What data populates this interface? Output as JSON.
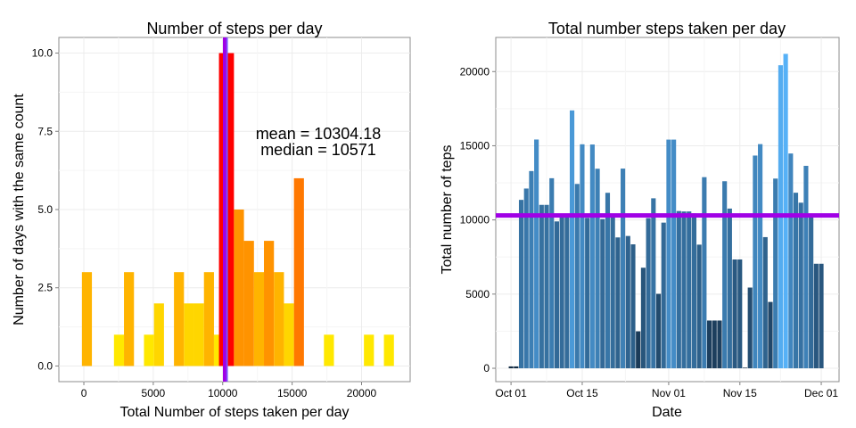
{
  "chart_data": [
    {
      "type": "bar",
      "title": "Number of steps per day",
      "xlabel": "Total Number of steps taken per day",
      "ylabel": "Number of days with the same count",
      "xlim": [
        -1800,
        23500
      ],
      "ylim": [
        -0.5,
        10.5
      ],
      "xticks": [
        0,
        5000,
        10000,
        15000,
        20000
      ],
      "xtick_labels": [
        "0",
        "5000",
        "10000",
        "15000",
        "20000"
      ],
      "yticks": [
        0,
        2.5,
        5,
        7.5,
        10
      ],
      "ytick_labels": [
        "0.0",
        "2.5",
        "5.0",
        "7.5",
        "10.0"
      ],
      "grid": true,
      "bin_width": 720,
      "bins": [
        {
          "x": 215,
          "count": 0
        },
        {
          "x": 220,
          "count": 3
        },
        {
          "x": 1650,
          "count": 0
        },
        {
          "x": 2530,
          "count": 1
        },
        {
          "x": 3250,
          "count": 3
        },
        {
          "x": 4690,
          "count": 1
        },
        {
          "x": 5410,
          "count": 2
        },
        {
          "x": 6850,
          "count": 3
        },
        {
          "x": 7570,
          "count": 2
        },
        {
          "x": 8290,
          "count": 2
        },
        {
          "x": 9010,
          "count": 3
        },
        {
          "x": 9730,
          "count": 1
        },
        {
          "x": 10090,
          "count": 10
        },
        {
          "x": 10450,
          "count": 10
        },
        {
          "x": 11170,
          "count": 5
        },
        {
          "x": 11890,
          "count": 4
        },
        {
          "x": 12610,
          "count": 3
        },
        {
          "x": 13330,
          "count": 4
        },
        {
          "x": 14050,
          "count": 3
        },
        {
          "x": 14770,
          "count": 2
        },
        {
          "x": 15490,
          "count": 6
        },
        {
          "x": 17650,
          "count": 1
        },
        {
          "x": 20530,
          "count": 1
        },
        {
          "x": 21970,
          "count": 1
        }
      ],
      "colors": {
        "low": "#ffe800",
        "mid": "#ffb400",
        "high": "#ff7800",
        "peak": "#ff0000",
        "mean_line": "#a000e6"
      },
      "mean_x": 10304.18,
      "median_x": 10571,
      "annotation_mean": "mean = 10304.18",
      "annotation_median": "median = 10571"
    },
    {
      "type": "bar",
      "title": "Total number steps taken per day",
      "xlabel": "Date",
      "ylabel": "Total number of teps",
      "ylim": [
        -900,
        22300
      ],
      "yticks": [
        0,
        5000,
        10000,
        15000,
        20000
      ],
      "ytick_labels": [
        "0",
        "5000",
        "10000",
        "15000",
        "20000"
      ],
      "xtick_labels": [
        "Oct 01",
        "Oct 15",
        "Nov 01",
        "Nov 15",
        "Dec 01"
      ],
      "xtick_days": [
        0,
        14,
        31,
        45,
        61
      ],
      "xlim_days": [
        -3,
        64.5
      ],
      "grid": true,
      "mean_line": 10304.18,
      "colors": {
        "bar_low": "#132b43",
        "bar_high": "#56b1f7",
        "mean_line": "#a000e6"
      },
      "values": [
        126,
        126,
        11352,
        12116,
        13294,
        15420,
        11015,
        11015,
        12811,
        9900,
        10304,
        10304,
        17382,
        12426,
        15098,
        10139,
        15084,
        13452,
        10056,
        11829,
        10395,
        8821,
        13460,
        8918,
        8355,
        2492,
        6778,
        10119,
        11458,
        5018,
        9819,
        15414,
        15414,
        10600,
        10571,
        10571,
        10439,
        8334,
        12883,
        3219,
        3219,
        3219,
        12608,
        10765,
        7336,
        7336,
        41,
        5441,
        14339,
        15110,
        8841,
        4472,
        12787,
        20427,
        21194,
        14478,
        11834,
        11162,
        13646,
        10183,
        7047,
        7047
      ]
    }
  ]
}
